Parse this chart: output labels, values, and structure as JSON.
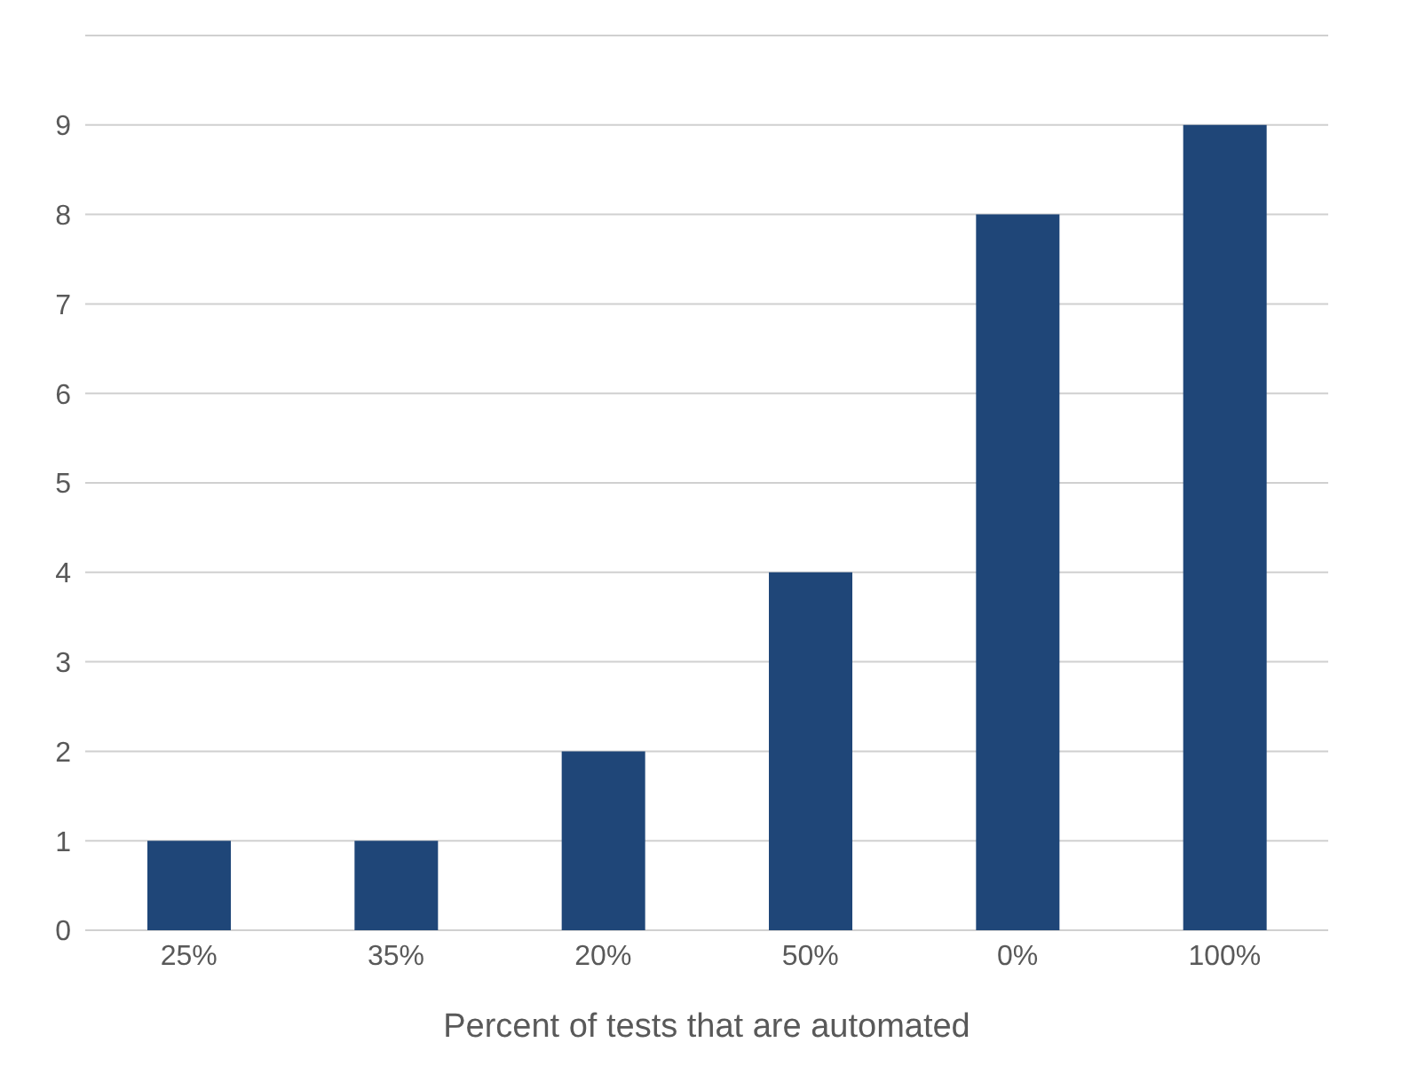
{
  "chart_data": {
    "type": "bar",
    "xlabel": "Percent of tests that are automated",
    "categories": [
      "25%",
      "35%",
      "20%",
      "50%",
      "0%",
      "100%"
    ],
    "values": [
      1,
      1,
      2,
      4,
      8,
      9
    ],
    "color": "#1f4678",
    "ylim": [
      0,
      10
    ],
    "yticks": [
      0,
      1,
      2,
      3,
      4,
      5,
      6,
      7,
      8,
      9,
      {
        "value": 10,
        "label": null
      }
    ],
    "grid": "y",
    "legend": false
  }
}
